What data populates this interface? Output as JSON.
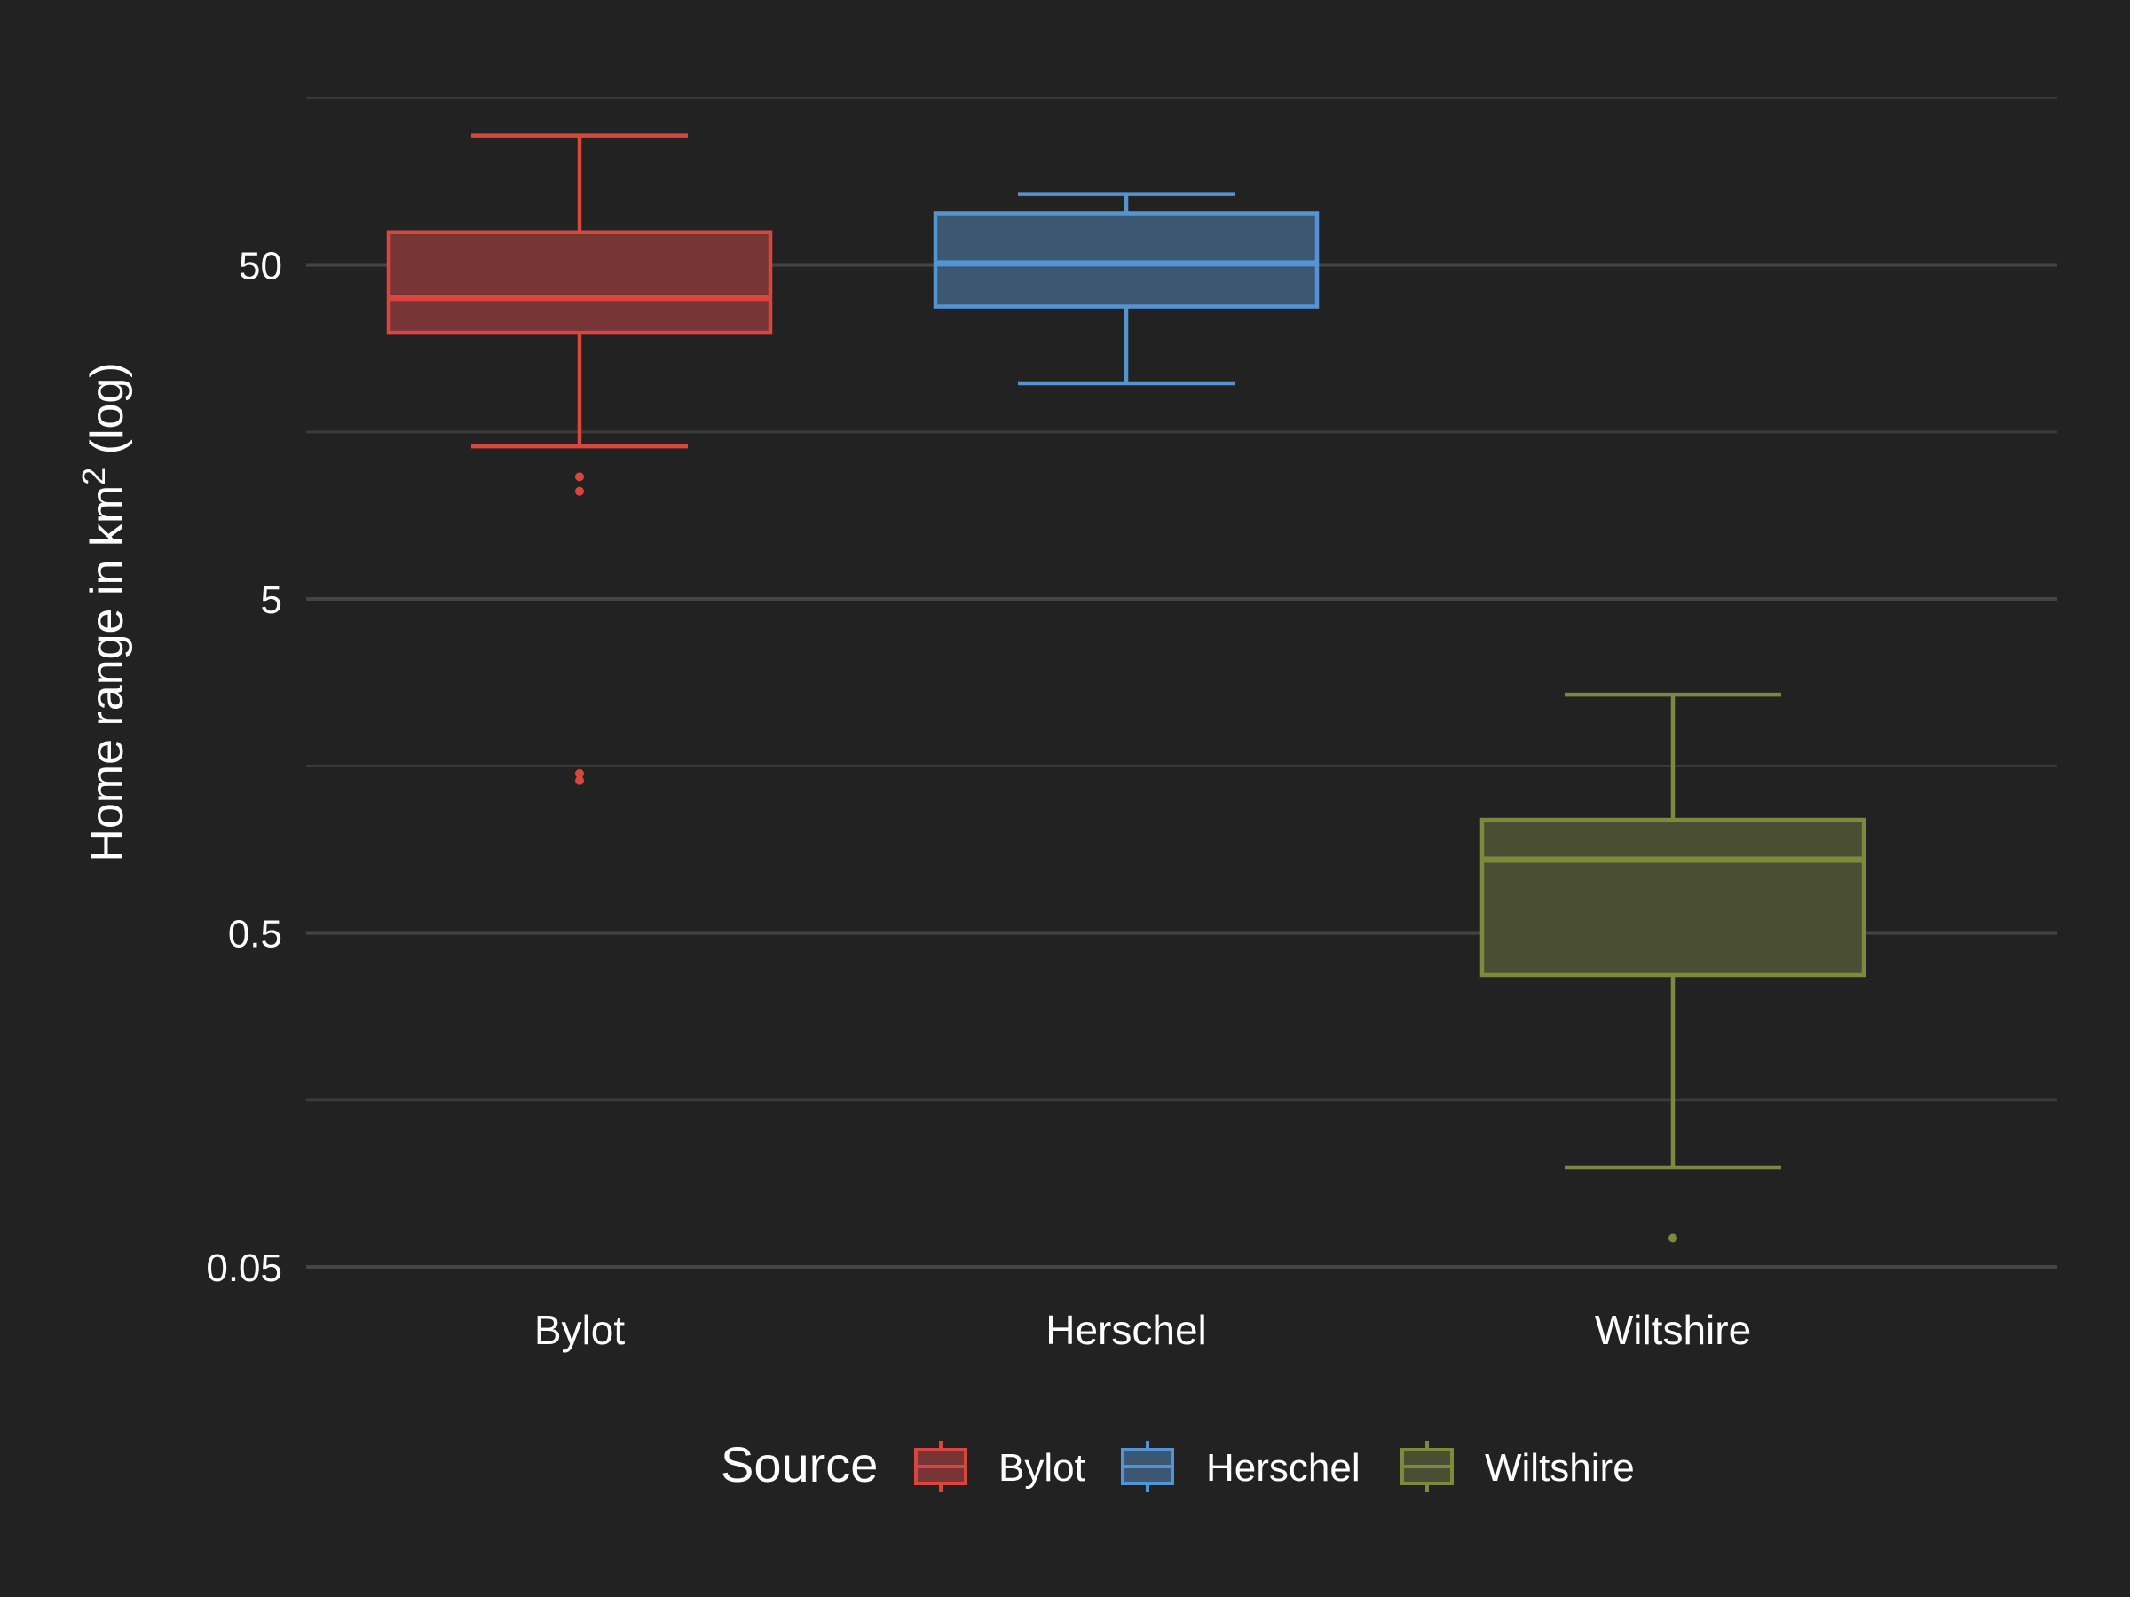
{
  "chart_data": {
    "type": "boxplot",
    "y_scale": "log10",
    "ylim": [
      0.05,
      200
    ],
    "y_ticks": [
      0.05,
      0.5,
      5,
      50
    ],
    "y_tick_labels": [
      "0.05",
      "0.5",
      "5",
      "50"
    ],
    "y_minor_gridlines": [
      0.158,
      1.58,
      15.8,
      158
    ],
    "grid": true,
    "categories": [
      "Bylot",
      "Herschel",
      "Wiltshire"
    ],
    "ylabel": "Home range in km",
    "ylabel_superscript": "2",
    "ylabel_suffix": " (log)",
    "xlabel": "",
    "legend": {
      "title": "Source",
      "position": "bottom",
      "entries": [
        "Bylot",
        "Herschel",
        "Wiltshire"
      ]
    },
    "series": [
      {
        "name": "Bylot",
        "color": "#d9463e",
        "fill": "#773536",
        "whisker_low": 14.3,
        "q1": 31.3,
        "median": 39.8,
        "q3": 62.6,
        "whisker_high": 122,
        "outliers": [
          11.6,
          10.5,
          1.5,
          1.43
        ]
      },
      {
        "name": "Herschel",
        "color": "#5294d4",
        "fill": "#3d5772",
        "whisker_low": 22.1,
        "q1": 37.5,
        "median": 50.5,
        "q3": 71.3,
        "whisker_high": 81.5
      },
      {
        "name": "Wiltshire",
        "color": "#7d8a3d",
        "fill": "#4a4e33",
        "whisker_low": 0.0992,
        "q1": 0.374,
        "median": 0.828,
        "q3": 1.09,
        "whisker_high": 2.58,
        "outliers": [
          0.061
        ]
      }
    ]
  }
}
